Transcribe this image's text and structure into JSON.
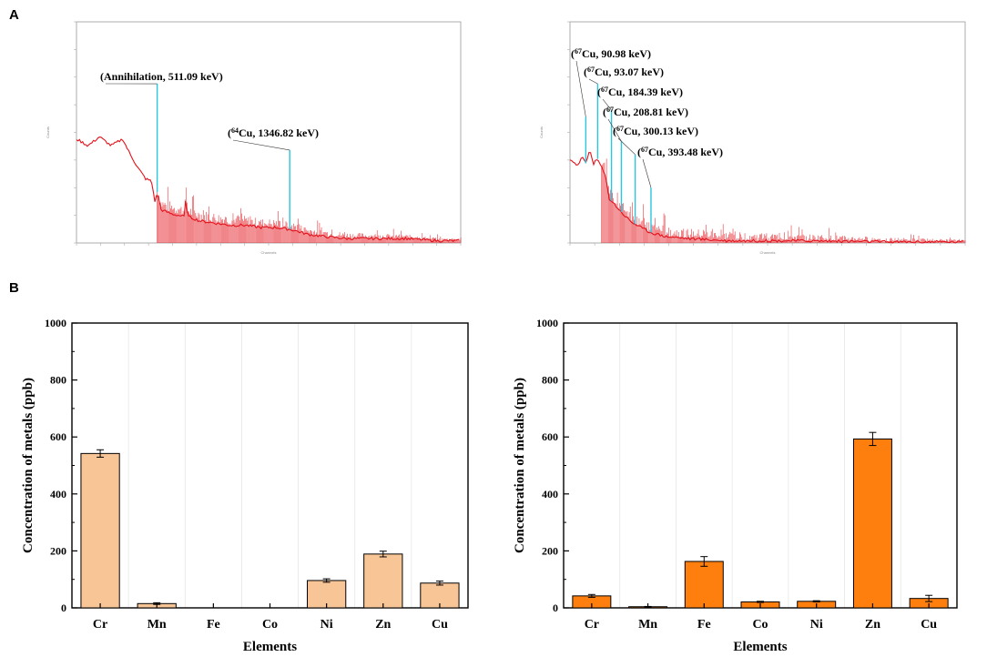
{
  "panels": {
    "A": "A",
    "B": "B"
  },
  "chart_data": [
    {
      "type": "line",
      "panel": "A",
      "title": "",
      "xlabel": "Channels",
      "ylabel": "Counts",
      "ylim": [
        0,
        1
      ],
      "xlim": [
        0,
        1
      ],
      "x": [
        0.0,
        0.03,
        0.06,
        0.09,
        0.12,
        0.14,
        0.16,
        0.18,
        0.195,
        0.205,
        0.21,
        0.22,
        0.25,
        0.28,
        0.285,
        0.29,
        0.32,
        0.36,
        0.4,
        0.44,
        0.48,
        0.52,
        0.56,
        0.58,
        0.6,
        0.64,
        0.7,
        0.78,
        0.86,
        0.94,
        1.0
      ],
      "series": [
        {
          "name": "spectrum",
          "values": [
            0.47,
            0.44,
            0.48,
            0.44,
            0.47,
            0.4,
            0.34,
            0.29,
            0.28,
            0.18,
            0.23,
            0.15,
            0.13,
            0.12,
            0.2,
            0.12,
            0.1,
            0.09,
            0.08,
            0.08,
            0.07,
            0.07,
            0.06,
            0.05,
            0.04,
            0.03,
            0.02,
            0.02,
            0.02,
            0.01,
            0.01
          ]
        }
      ],
      "peaks": [
        {
          "x": 0.21,
          "height": 0.72,
          "label_main": "(Annihilation, 511.09 keV)"
        },
        {
          "x": 0.555,
          "height": 0.42,
          "sup": "64",
          "label_main": "Cu, 1346.82 keV)"
        }
      ]
    },
    {
      "type": "line",
      "panel": "A",
      "title": "",
      "xlabel": "Channels",
      "ylabel": "Counts",
      "ylim": [
        0,
        1
      ],
      "xlim": [
        0,
        1
      ],
      "x": [
        0.0,
        0.02,
        0.03,
        0.04,
        0.05,
        0.06,
        0.07,
        0.08,
        0.09,
        0.1,
        0.12,
        0.14,
        0.16,
        0.18,
        0.2,
        0.24,
        0.3,
        0.4,
        0.5,
        0.6,
        0.8,
        1.0
      ],
      "series": [
        {
          "name": "spectrum",
          "values": [
            0.38,
            0.35,
            0.39,
            0.36,
            0.42,
            0.36,
            0.38,
            0.34,
            0.3,
            0.2,
            0.16,
            0.12,
            0.09,
            0.07,
            0.05,
            0.03,
            0.02,
            0.01,
            0.01,
            0.01,
            0.005,
            0.005
          ]
        }
      ],
      "peaks": [
        {
          "x": 0.04,
          "height": 0.57,
          "sup": "67",
          "label_main": "Cu, 90.98 keV)"
        },
        {
          "x": 0.07,
          "height": 0.72,
          "sup": "67",
          "label_main": "Cu, 93.07 keV)"
        },
        {
          "x": 0.105,
          "height": 0.6,
          "sup": "67",
          "label_main": "Cu, 184.39 keV)"
        },
        {
          "x": 0.13,
          "height": 0.46,
          "sup": "67",
          "label_main": "Cu, 208.81 keV)"
        },
        {
          "x": 0.165,
          "height": 0.4,
          "sup": "67",
          "label_main": "Cu, 300.13 keV)"
        },
        {
          "x": 0.205,
          "height": 0.25,
          "sup": "67",
          "label_main": "Cu, 393.48 keV)"
        }
      ]
    },
    {
      "type": "bar",
      "panel": "B",
      "title": "",
      "xlabel": "Elements",
      "ylabel": "Concentration of metals (ppb)",
      "ylim": [
        0,
        1000
      ],
      "yticks": [
        0,
        200,
        400,
        600,
        800,
        1000
      ],
      "categories": [
        "Cr",
        "Mn",
        "Fe",
        "Co",
        "Ni",
        "Zn",
        "Cu"
      ],
      "values": [
        542,
        15,
        0,
        0,
        96,
        189,
        87
      ],
      "errors": [
        13,
        3,
        0,
        0,
        6,
        10,
        7
      ],
      "color": "#f8c596"
    },
    {
      "type": "bar",
      "panel": "B",
      "title": "",
      "xlabel": "Elements",
      "ylabel": "Concentration of metals (ppb)",
      "ylim": [
        0,
        1000
      ],
      "yticks": [
        0,
        200,
        400,
        600,
        800,
        1000
      ],
      "categories": [
        "Cr",
        "Mn",
        "Fe",
        "Co",
        "Ni",
        "Zn",
        "Cu"
      ],
      "values": [
        42,
        4,
        163,
        21,
        23,
        593,
        33
      ],
      "errors": [
        5,
        1,
        17,
        2,
        2,
        23,
        11
      ],
      "color": "#ff7f0e"
    }
  ]
}
